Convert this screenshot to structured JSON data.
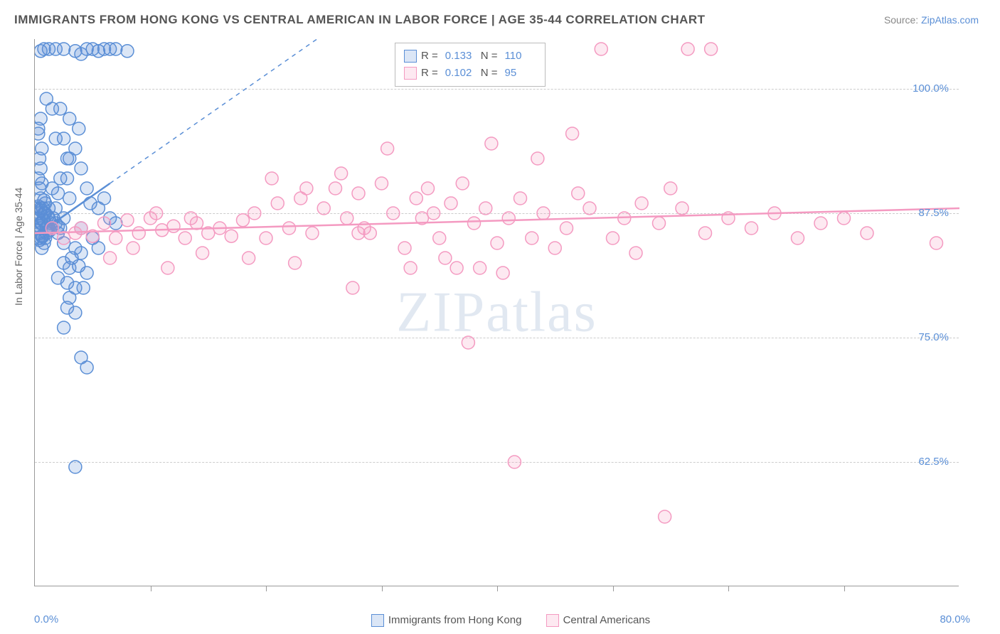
{
  "title": "IMMIGRANTS FROM HONG KONG VS CENTRAL AMERICAN IN LABOR FORCE | AGE 35-44 CORRELATION CHART",
  "source_prefix": "Source: ",
  "source_name": "ZipAtlas.com",
  "watermark": "ZIPatlas",
  "chart": {
    "type": "scatter",
    "ylabel": "In Labor Force | Age 35-44",
    "xlim": [
      0,
      80
    ],
    "ylim": [
      50,
      105
    ],
    "xlim_labels": [
      "0.0%",
      "80.0%"
    ],
    "ytick_positions": [
      62.5,
      75.0,
      87.5,
      100.0
    ],
    "ytick_labels": [
      "62.5%",
      "75.0%",
      "87.5%",
      "100.0%"
    ],
    "xtick_positions": [
      10,
      20,
      30,
      40,
      50,
      60,
      70
    ],
    "background_color": "#ffffff",
    "grid_color": "#cccccc",
    "axis_color": "#999999",
    "tick_font_color": "#5b8fd6",
    "label_font_color": "#666666",
    "title_font_color": "#555555",
    "title_fontsize": 17,
    "tick_fontsize": 15,
    "label_fontsize": 14,
    "marker_radius": 9,
    "marker_stroke_width": 1.5,
    "marker_fill_opacity": 0.22,
    "trend_line_width": 2.5,
    "series": [
      {
        "name": "Immigrants from Hong Kong",
        "color": "#5b8fd6",
        "R": "0.133",
        "N": "110",
        "trend": {
          "x1": 0,
          "y1": 85.2,
          "x2": 6.5,
          "y2": 90.5,
          "dash_extend_x2": 38,
          "dash_extend_y2": 116
        },
        "points": [
          [
            0.3,
            87
          ],
          [
            0.5,
            86
          ],
          [
            0.4,
            85.5
          ],
          [
            0.6,
            86.5
          ],
          [
            0.8,
            87.5
          ],
          [
            1.0,
            86
          ],
          [
            0.5,
            88
          ],
          [
            0.9,
            85
          ],
          [
            0.4,
            84.8
          ],
          [
            1.2,
            87
          ],
          [
            0.3,
            85
          ],
          [
            0.7,
            86.8
          ],
          [
            1.5,
            86
          ],
          [
            0.6,
            85.2
          ],
          [
            1.1,
            87.2
          ],
          [
            0.8,
            84.5
          ],
          [
            1.8,
            86.5
          ],
          [
            0.5,
            87.8
          ],
          [
            1.3,
            85.8
          ],
          [
            0.9,
            88.5
          ],
          [
            0.4,
            86.2
          ],
          [
            1.0,
            85.5
          ],
          [
            0.7,
            88
          ],
          [
            1.6,
            87
          ],
          [
            0.5,
            85
          ],
          [
            2.0,
            86.2
          ],
          [
            0.8,
            86.8
          ],
          [
            1.2,
            88
          ],
          [
            0.6,
            84
          ],
          [
            2.2,
            86
          ],
          [
            0.3,
            88.2
          ],
          [
            1.4,
            86.5
          ],
          [
            0.9,
            87.5
          ],
          [
            2.5,
            87
          ],
          [
            0.5,
            86.5
          ],
          [
            1.8,
            88
          ],
          [
            0.7,
            85.2
          ],
          [
            1.1,
            86
          ],
          [
            2.0,
            85.5
          ],
          [
            0.4,
            87.5
          ],
          [
            0.8,
            88.8
          ],
          [
            5.0,
            104
          ],
          [
            4.5,
            104
          ],
          [
            5.5,
            103.8
          ],
          [
            6.0,
            104
          ],
          [
            7.0,
            104
          ],
          [
            8.0,
            103.8
          ],
          [
            3.5,
            103.8
          ],
          [
            4.0,
            103.5
          ],
          [
            6.5,
            104
          ],
          [
            3.0,
            97
          ],
          [
            3.8,
            96
          ],
          [
            2.2,
            98
          ],
          [
            3.0,
            93
          ],
          [
            2.5,
            95
          ],
          [
            3.5,
            94
          ],
          [
            2.8,
            91
          ],
          [
            4.0,
            92
          ],
          [
            3.0,
            89
          ],
          [
            1.5,
            90
          ],
          [
            2.0,
            89.5
          ],
          [
            4.5,
            90
          ],
          [
            2.8,
            93
          ],
          [
            1.8,
            95
          ],
          [
            2.2,
            91
          ],
          [
            5.5,
            88
          ],
          [
            6.0,
            89
          ],
          [
            7.0,
            86.5
          ],
          [
            5.0,
            85
          ],
          [
            6.5,
            87
          ],
          [
            5.5,
            84
          ],
          [
            4.0,
            86
          ],
          [
            4.8,
            88.5
          ],
          [
            3.0,
            82
          ],
          [
            3.5,
            84
          ],
          [
            2.8,
            80.5
          ],
          [
            2.5,
            82.5
          ],
          [
            3.2,
            83
          ],
          [
            2.0,
            81
          ],
          [
            4.0,
            83.5
          ],
          [
            3.5,
            80
          ],
          [
            4.5,
            81.5
          ],
          [
            2.5,
            84.5
          ],
          [
            3.8,
            82.2
          ],
          [
            3.0,
            79
          ],
          [
            4.2,
            80
          ],
          [
            3.5,
            77.5
          ],
          [
            2.8,
            78
          ],
          [
            2.5,
            76
          ],
          [
            4.0,
            73
          ],
          [
            4.5,
            72
          ],
          [
            3.5,
            62
          ],
          [
            1.8,
            104
          ],
          [
            1.2,
            104
          ],
          [
            0.8,
            104
          ],
          [
            2.5,
            104
          ],
          [
            0.5,
            103.8
          ],
          [
            0.3,
            96
          ],
          [
            0.5,
            92
          ],
          [
            0.4,
            90
          ],
          [
            0.6,
            94
          ],
          [
            0.3,
            91
          ],
          [
            0.5,
            89
          ],
          [
            0.2,
            88
          ],
          [
            0.4,
            93
          ],
          [
            0.6,
            90.5
          ],
          [
            0.3,
            95.5
          ],
          [
            0.5,
            97
          ],
          [
            1.0,
            99
          ],
          [
            1.5,
            98
          ]
        ]
      },
      {
        "name": "Central Americans",
        "color": "#f49ac1",
        "R": "0.102",
        "N": "95",
        "trend": {
          "x1": 0,
          "y1": 85.5,
          "x2": 80,
          "y2": 88.0
        },
        "points": [
          [
            1.5,
            86
          ],
          [
            2.5,
            85
          ],
          [
            3.5,
            85.5
          ],
          [
            4.0,
            86
          ],
          [
            5.0,
            85.2
          ],
          [
            6.0,
            86.5
          ],
          [
            7.0,
            85
          ],
          [
            8.0,
            86.8
          ],
          [
            9.0,
            85.5
          ],
          [
            10.0,
            87
          ],
          [
            11.0,
            85.8
          ],
          [
            12.0,
            86.2
          ],
          [
            10.5,
            87.5
          ],
          [
            13.0,
            85
          ],
          [
            14.0,
            86.5
          ],
          [
            15.0,
            85.5
          ],
          [
            13.5,
            87
          ],
          [
            16.0,
            86
          ],
          [
            17.0,
            85.2
          ],
          [
            18.0,
            86.8
          ],
          [
            19.0,
            87.5
          ],
          [
            20.0,
            85
          ],
          [
            21.0,
            88.5
          ],
          [
            22.0,
            86
          ],
          [
            23.0,
            89
          ],
          [
            24.0,
            85.5
          ],
          [
            20.5,
            91
          ],
          [
            23.5,
            90
          ],
          [
            25.0,
            88
          ],
          [
            26.0,
            90
          ],
          [
            27.0,
            87
          ],
          [
            28.0,
            89.5
          ],
          [
            29.0,
            85.5
          ],
          [
            30.0,
            90.5
          ],
          [
            28.5,
            86
          ],
          [
            31.0,
            87.5
          ],
          [
            32.0,
            84
          ],
          [
            33.0,
            89
          ],
          [
            34.0,
            90
          ],
          [
            35.0,
            85
          ],
          [
            33.5,
            87
          ],
          [
            36.0,
            88.5
          ],
          [
            37.0,
            90.5
          ],
          [
            38.0,
            86.5
          ],
          [
            39.0,
            88
          ],
          [
            40.0,
            84.5
          ],
          [
            41.0,
            87
          ],
          [
            42.0,
            89
          ],
          [
            39.5,
            94.5
          ],
          [
            43.0,
            85
          ],
          [
            26.5,
            91.5
          ],
          [
            30.5,
            94
          ],
          [
            35.5,
            83
          ],
          [
            38.5,
            82
          ],
          [
            22.5,
            82.5
          ],
          [
            27.5,
            80
          ],
          [
            32.5,
            82
          ],
          [
            36.5,
            82
          ],
          [
            40.5,
            81.5
          ],
          [
            18.5,
            83
          ],
          [
            14.5,
            83.5
          ],
          [
            11.5,
            82
          ],
          [
            8.5,
            84
          ],
          [
            6.5,
            83
          ],
          [
            44.0,
            87.5
          ],
          [
            45.0,
            84
          ],
          [
            46.0,
            86
          ],
          [
            48.0,
            88
          ],
          [
            50.0,
            85
          ],
          [
            47.0,
            89.5
          ],
          [
            51.0,
            87
          ],
          [
            52.0,
            83.5
          ],
          [
            54.0,
            86.5
          ],
          [
            56.0,
            88
          ],
          [
            58.0,
            85.5
          ],
          [
            60.0,
            87
          ],
          [
            55.0,
            90
          ],
          [
            62.0,
            86
          ],
          [
            64.0,
            87.5
          ],
          [
            66.0,
            85
          ],
          [
            68.0,
            86.5
          ],
          [
            70.0,
            87
          ],
          [
            72.0,
            85.5
          ],
          [
            78.0,
            84.5
          ],
          [
            49.0,
            104
          ],
          [
            56.5,
            104
          ],
          [
            58.5,
            104
          ],
          [
            46.5,
            95.5
          ],
          [
            43.5,
            93
          ],
          [
            37.5,
            74.5
          ],
          [
            41.5,
            62.5
          ],
          [
            54.5,
            57
          ],
          [
            28.0,
            85.5
          ],
          [
            34.5,
            87.5
          ],
          [
            52.5,
            88.5
          ]
        ]
      }
    ]
  },
  "legend_top": {
    "r_label": "R =",
    "n_label": "N ="
  },
  "legend_bottom": {
    "items": [
      "Immigrants from Hong Kong",
      "Central Americans"
    ]
  }
}
